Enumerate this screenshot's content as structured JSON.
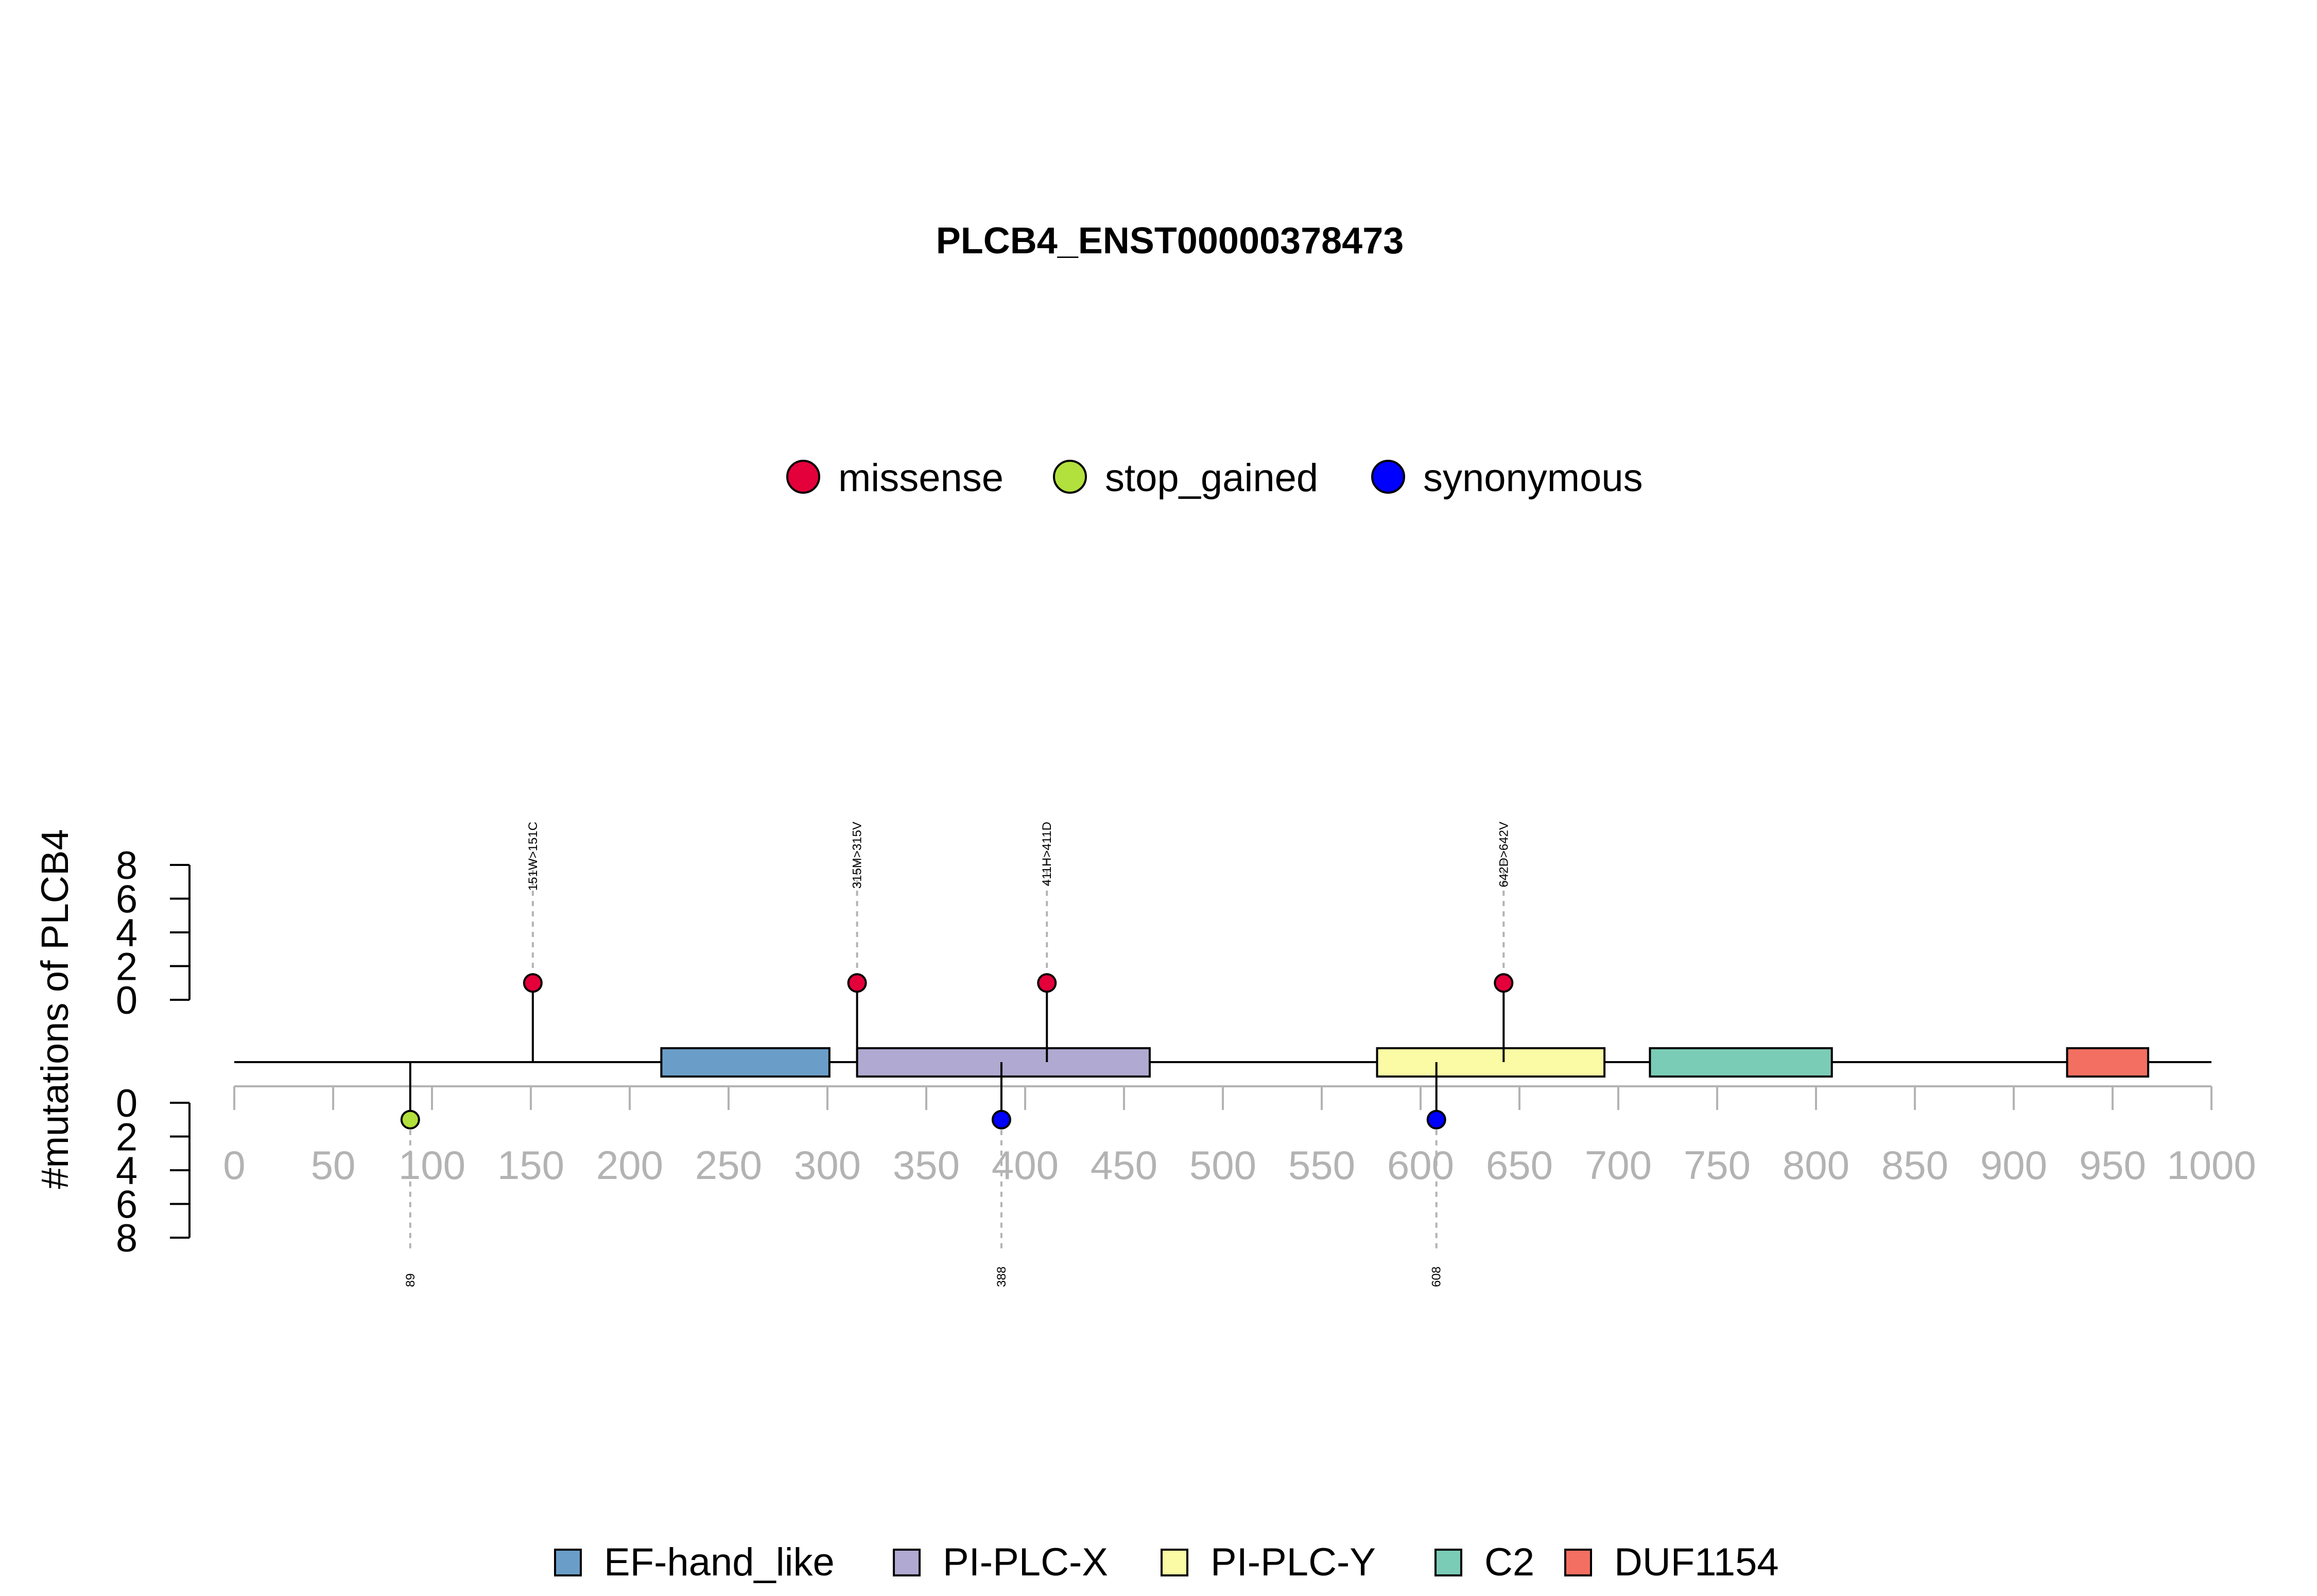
{
  "chart_data": {
    "type": "lollipop",
    "title": "PLCB4_ENST00000378473",
    "ylabel": "#mutations of PLCB4",
    "xlim": [
      0,
      1000
    ],
    "x_ticks": [
      "0",
      "50",
      "100",
      "150",
      "200",
      "250",
      "300",
      "350",
      "400",
      "450",
      "500",
      "550",
      "600",
      "650",
      "700",
      "750",
      "800",
      "850",
      "900",
      "950",
      "1000"
    ],
    "y_ticks": [
      "0",
      "2",
      "4",
      "6",
      "8"
    ],
    "ylim": [
      0,
      8
    ],
    "mutation_legend": [
      {
        "name": "missense",
        "color": "#e4003a"
      },
      {
        "name": "stop_gained",
        "color": "#b2e03c"
      },
      {
        "name": "synonymous",
        "color": "#0000ff"
      }
    ],
    "mutations_top": [
      {
        "position": 151,
        "count": 1,
        "type": "missense",
        "label": "151W>151C"
      },
      {
        "position": 315,
        "count": 1,
        "type": "missense",
        "label": "315M>315V"
      },
      {
        "position": 411,
        "count": 1,
        "type": "missense",
        "label": "411H>411D"
      },
      {
        "position": 642,
        "count": 1,
        "type": "missense",
        "label": "642D>642V"
      }
    ],
    "mutations_bottom": [
      {
        "position": 89,
        "count": 1,
        "type": "stop_gained",
        "label": "89"
      },
      {
        "position": 388,
        "count": 1,
        "type": "synonymous",
        "label": "388"
      },
      {
        "position": 608,
        "count": 1,
        "type": "synonymous",
        "label": "608"
      }
    ],
    "domains": [
      {
        "name": "EF-hand_like",
        "start": 216,
        "end": 301,
        "color": "#6a9ec8"
      },
      {
        "name": "PI-PLC-X",
        "start": 315,
        "end": 463,
        "color": "#b0a9d1"
      },
      {
        "name": "PI-PLC-Y",
        "start": 578,
        "end": 693,
        "color": "#fbfba5"
      },
      {
        "name": "C2",
        "start": 716,
        "end": 808,
        "color": "#7bccb6"
      },
      {
        "name": "DUF1154",
        "start": 927,
        "end": 968,
        "color": "#f36f61"
      }
    ],
    "domain_legend": [
      "EF-hand_like",
      "PI-PLC-X",
      "PI-PLC-Y",
      "C2",
      "DUF1154"
    ]
  }
}
